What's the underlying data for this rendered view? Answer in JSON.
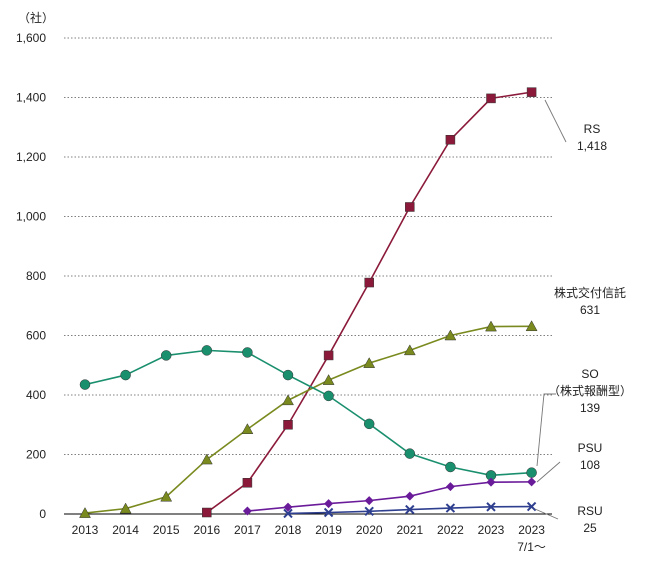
{
  "chart_data": {
    "type": "line",
    "unit_label": "（社）",
    "x_ticks": [
      {
        "line1": "2013",
        "line2": ""
      },
      {
        "line1": "2014",
        "line2": ""
      },
      {
        "line1": "2015",
        "line2": ""
      },
      {
        "line1": "2016",
        "line2": ""
      },
      {
        "line1": "2017",
        "line2": ""
      },
      {
        "line1": "2018",
        "line2": ""
      },
      {
        "line1": "2019",
        "line2": ""
      },
      {
        "line1": "2020",
        "line2": ""
      },
      {
        "line1": "2021",
        "line2": ""
      },
      {
        "line1": "2022",
        "line2": ""
      },
      {
        "line1": "2023",
        "line2": ""
      },
      {
        "line1": "2023",
        "line2": "7/1～"
      }
    ],
    "y_ticks": [
      "0",
      "200",
      "400",
      "600",
      "800",
      "1,000",
      "1,200",
      "1,400",
      "1,600"
    ],
    "ylim": [
      0,
      1600
    ],
    "grid": true,
    "series": [
      {
        "key": "rs",
        "label_lines": [
          "RS",
          "1,418"
        ],
        "color": "#8b1a3a",
        "marker": "square",
        "values": [
          null,
          null,
          null,
          5,
          105,
          300,
          533,
          778,
          1032,
          1258,
          1397,
          1418
        ]
      },
      {
        "key": "trust",
        "label_lines": [
          "株式交付信託",
          "631"
        ],
        "color": "#7a8a1e",
        "marker": "triangle",
        "values": [
          3,
          18,
          58,
          183,
          285,
          382,
          450,
          507,
          550,
          600,
          630,
          631
        ]
      },
      {
        "key": "so",
        "label_lines": [
          "SO",
          "（株式報酬型）",
          "139"
        ],
        "color": "#1a8f6e",
        "marker": "circle",
        "values": [
          435,
          467,
          533,
          550,
          543,
          467,
          397,
          303,
          203,
          158,
          130,
          139
        ]
      },
      {
        "key": "psu",
        "label_lines": [
          "PSU",
          "108"
        ],
        "color": "#6a1b9a",
        "marker": "diamond",
        "values": [
          null,
          null,
          null,
          null,
          10,
          23,
          35,
          45,
          60,
          92,
          107,
          108
        ]
      },
      {
        "key": "rsu",
        "label_lines": [
          "RSU",
          "25"
        ],
        "color": "#2e3f8f",
        "marker": "cross",
        "values": [
          null,
          null,
          null,
          null,
          null,
          2,
          5,
          9,
          15,
          20,
          24,
          25
        ]
      }
    ]
  }
}
